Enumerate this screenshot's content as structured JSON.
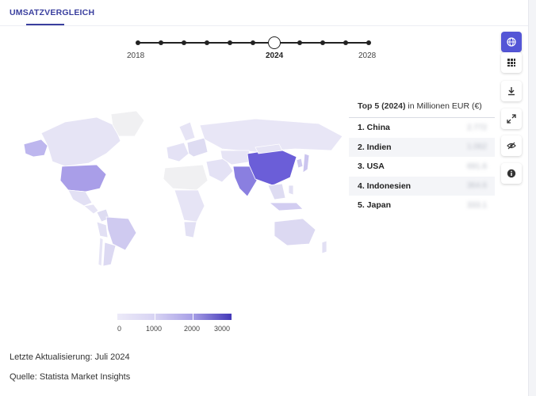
{
  "tabs": {
    "active_label": "UMSATZVERGLEICH"
  },
  "timeline": {
    "years": [
      "2018",
      "2024",
      "2028"
    ],
    "selected": "2024"
  },
  "top5": {
    "title_bold": "Top 5 (2024)",
    "title_rest": " in Millionen EUR (€)",
    "items": [
      {
        "label": "1. China",
        "value": "2.772"
      },
      {
        "label": "2. Indien",
        "value": "1.062"
      },
      {
        "label": "3. USA",
        "value": "691.6"
      },
      {
        "label": "4. Indonesien",
        "value": "364.6"
      },
      {
        "label": "5. Japan",
        "value": "333.1"
      }
    ]
  },
  "legend": {
    "ticks": [
      "0",
      "1000",
      "2000",
      "3000"
    ],
    "colors": [
      "#eceaf8",
      "#d7d3f3",
      "#a79fe6",
      "#4338b8"
    ]
  },
  "footer": {
    "updated": "Letzte Aktualisierung: Juli 2024",
    "source": "Quelle: Statista Market Insights"
  },
  "icons": {
    "rail": [
      "globe-icon",
      "grid-icon",
      "download-icon",
      "expand-icon",
      "hide-icon",
      "info-icon"
    ]
  },
  "colors": {
    "accent": "#5456d6",
    "highlight_country": "#6b5ed8"
  }
}
